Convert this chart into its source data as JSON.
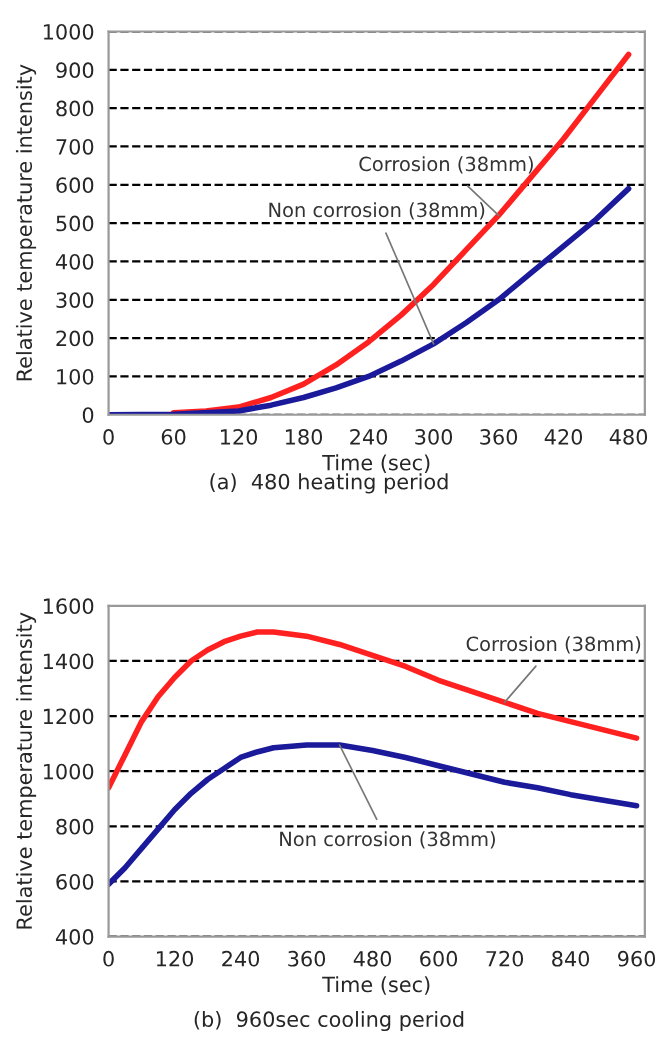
{
  "chart_data": [
    {
      "type": "line",
      "xlabel": "Time (sec)",
      "ylabel": "Relative temperature intensity",
      "annotations": [
        "(a)  480 heating period"
      ],
      "xlim": [
        0,
        495
      ],
      "xticks": [
        0,
        60,
        120,
        180,
        240,
        300,
        360,
        420,
        480
      ],
      "ylim": [
        0,
        1000
      ],
      "yticks": [
        0,
        100,
        200,
        300,
        400,
        500,
        600,
        700,
        800,
        900,
        1000
      ],
      "grid": "y",
      "legend": false,
      "marker": "none",
      "line_style": "solid",
      "series": [
        {
          "name": "Corrosion (38mm)",
          "color": "#ff2020",
          "x": [
            60,
            90,
            120,
            150,
            180,
            210,
            240,
            270,
            300,
            330,
            360,
            390,
            420,
            450,
            480
          ],
          "values": [
            5,
            10,
            20,
            45,
            80,
            130,
            190,
            260,
            340,
            430,
            520,
            620,
            720,
            830,
            940
          ]
        },
        {
          "name": "Non corrosion (38mm)",
          "color": "#1a1a9a",
          "x": [
            0,
            60,
            120,
            150,
            180,
            210,
            240,
            270,
            300,
            330,
            360,
            390,
            420,
            450,
            480
          ],
          "values": [
            0,
            1,
            10,
            25,
            45,
            70,
            100,
            140,
            185,
            240,
            300,
            370,
            440,
            510,
            590
          ]
        }
      ]
    },
    {
      "type": "line",
      "xlabel": "Time (sec)",
      "ylabel": "Relative temperature intensity",
      "annotations": [
        "(b)  960sec cooling period"
      ],
      "xlim": [
        0,
        975
      ],
      "xticks": [
        0,
        120,
        240,
        360,
        480,
        600,
        720,
        840,
        960
      ],
      "ylim": [
        400,
        1600
      ],
      "yticks": [
        400,
        600,
        800,
        1000,
        1200,
        1400,
        1600
      ],
      "grid": "y",
      "legend": false,
      "marker": "none",
      "line_style": "solid",
      "series": [
        {
          "name": "Corrosion (38mm)",
          "color": "#ff2020",
          "x": [
            0,
            30,
            60,
            90,
            120,
            150,
            180,
            210,
            240,
            270,
            300,
            360,
            420,
            480,
            540,
            600,
            660,
            720,
            780,
            840,
            900,
            960
          ],
          "values": [
            940,
            1060,
            1180,
            1270,
            1340,
            1400,
            1440,
            1470,
            1490,
            1505,
            1505,
            1490,
            1460,
            1420,
            1380,
            1330,
            1290,
            1250,
            1210,
            1180,
            1150,
            1120
          ]
        },
        {
          "name": "Non corrosion (38mm)",
          "color": "#1a1a9a",
          "x": [
            0,
            30,
            60,
            90,
            120,
            150,
            180,
            210,
            240,
            270,
            300,
            360,
            420,
            480,
            540,
            600,
            660,
            720,
            780,
            840,
            900,
            960
          ],
          "values": [
            590,
            650,
            720,
            790,
            860,
            920,
            970,
            1010,
            1050,
            1070,
            1085,
            1095,
            1095,
            1075,
            1050,
            1020,
            990,
            960,
            940,
            915,
            895,
            875
          ]
        }
      ]
    }
  ]
}
